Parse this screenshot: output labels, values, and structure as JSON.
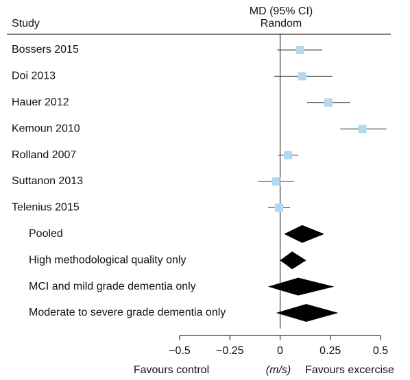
{
  "chart_data": {
    "type": "forest",
    "study_header": "Study",
    "effect_header": "MD (95% CI)",
    "model_header": "Random",
    "studies": {
      "categories": [
        "Bossers 2015",
        "Doi 2013",
        "Hauer 2012",
        "Kemoun 2010",
        "Rolland 2007",
        "Suttanon 2013",
        "Telenius 2015"
      ],
      "values": [
        0.1,
        0.11,
        0.24,
        0.41,
        0.04,
        -0.02,
        -0.005
      ],
      "lower": [
        -0.015,
        -0.03,
        0.135,
        0.3,
        -0.01,
        -0.11,
        -0.06
      ],
      "upper": [
        0.21,
        0.26,
        0.35,
        0.53,
        0.09,
        0.07,
        0.05
      ],
      "color": "#b3d9f0"
    },
    "pooled": {
      "categories": [
        "Pooled",
        "High methodological quality only",
        "MCI and mild grade dementia only",
        "Moderate to severe grade dementia only"
      ],
      "values": [
        0.11,
        0.06,
        0.09,
        0.13
      ],
      "lower": [
        0.02,
        0.0,
        -0.06,
        -0.02
      ],
      "upper": [
        0.22,
        0.13,
        0.27,
        0.29
      ],
      "color": "#000000"
    },
    "xlim": [
      -0.5,
      0.5
    ],
    "xticks": [
      {
        "value": -0.5,
        "label": "−0.5"
      },
      {
        "value": -0.25,
        "label": "−0.25"
      },
      0,
      0.25,
      0.5
    ],
    "xlabel_left": "Favours control",
    "xlabel_unit": "(m/s)",
    "xlabel_right": "Favours excercise"
  }
}
